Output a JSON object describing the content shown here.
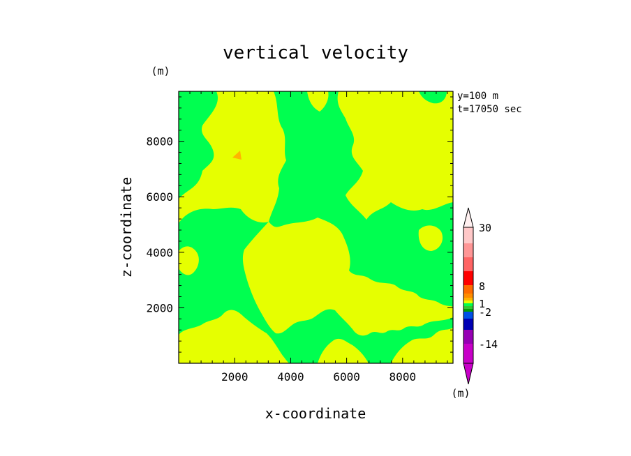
{
  "chart_data": {
    "type": "heatmap",
    "title": "vertical velocity",
    "xlabel": "x-coordinate",
    "ylabel": "z-coordinate",
    "x_unit": "(m)",
    "y_unit": "(m)",
    "xlim": [
      0,
      9800
    ],
    "ylim": [
      0,
      9800
    ],
    "x_ticks": [
      2000,
      4000,
      6000,
      8000
    ],
    "y_ticks": [
      2000,
      4000,
      6000,
      8000
    ],
    "annotations": [
      "y=100 m",
      "t=17050 sec"
    ],
    "colorbar": {
      "unit": "(m)",
      "tick_labels": [
        "30",
        "8",
        "1",
        "-2",
        "-14"
      ],
      "colors": [
        "#c800c8",
        "#9600b4",
        "#0000b4",
        "#0050e6",
        "#00a000",
        "#32c832",
        "#00ff50",
        "#e6ff00",
        "#ffb400",
        "#ff8c00",
        "#ff6a00",
        "#ff0000",
        "#ff6464",
        "#ff9696",
        "#ffc8c8",
        "#fff0f0"
      ]
    },
    "field_note": "field is predominantly values in two adjacent bands: green (slightly negative) and yellow (slightly positive)",
    "colors": {
      "green": "#00ff50",
      "yellow": "#e6ff00",
      "orange": "#ffb400"
    }
  }
}
